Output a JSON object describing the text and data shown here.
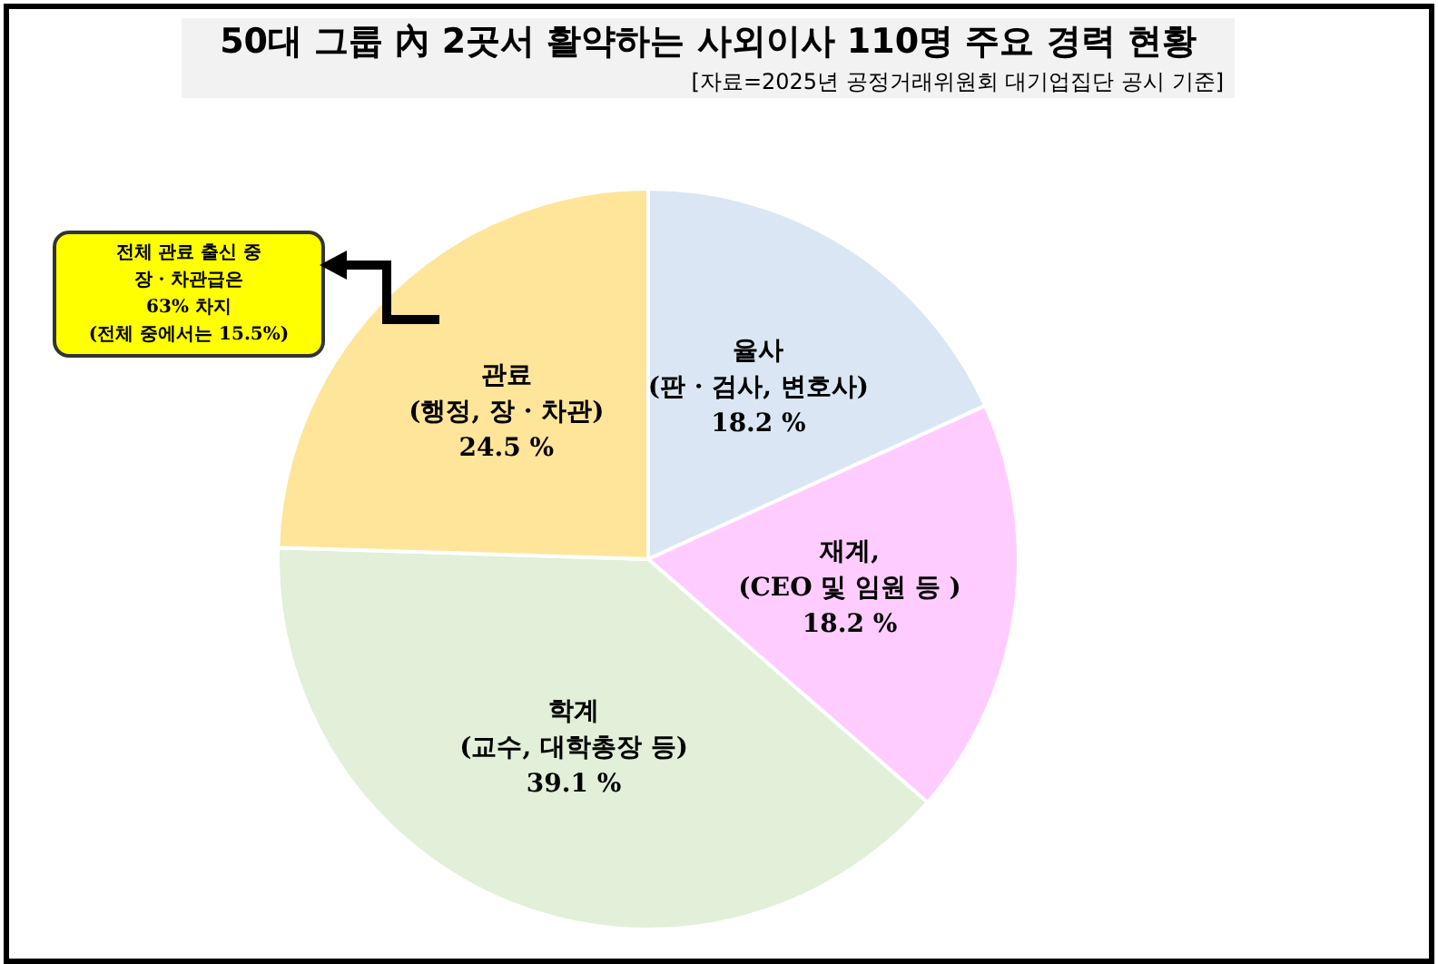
{
  "chart_data": {
    "type": "pie",
    "title": "50대 그룹 內 2곳서 활약하는 사외이사 110명 주요 경력 현황",
    "subtitle": "[자료=2025년 공정거래위원회 대기업집단 공시 기준]",
    "categories": [
      "율사\n(판 · 검사, 변호사)",
      "재계,\n(CEO 및 임원 등 )",
      "학계\n(교수, 대학총장 등)",
      "관료\n(행정, 장 · 차관)"
    ],
    "values": [
      18.2,
      18.2,
      39.1,
      24.5
    ],
    "value_labels": [
      "18.2 %",
      "18.2 %",
      "39.1 %",
      "24.5 %"
    ],
    "colors": [
      "#dae6f3",
      "#ffccff",
      "#e2efd9",
      "#ffe59a"
    ],
    "annotations": [
      "전체 관료 출신 중\n장 · 차관급은\n63% 차지\n(전체 중에서는 15.5%)"
    ],
    "legend": false
  }
}
